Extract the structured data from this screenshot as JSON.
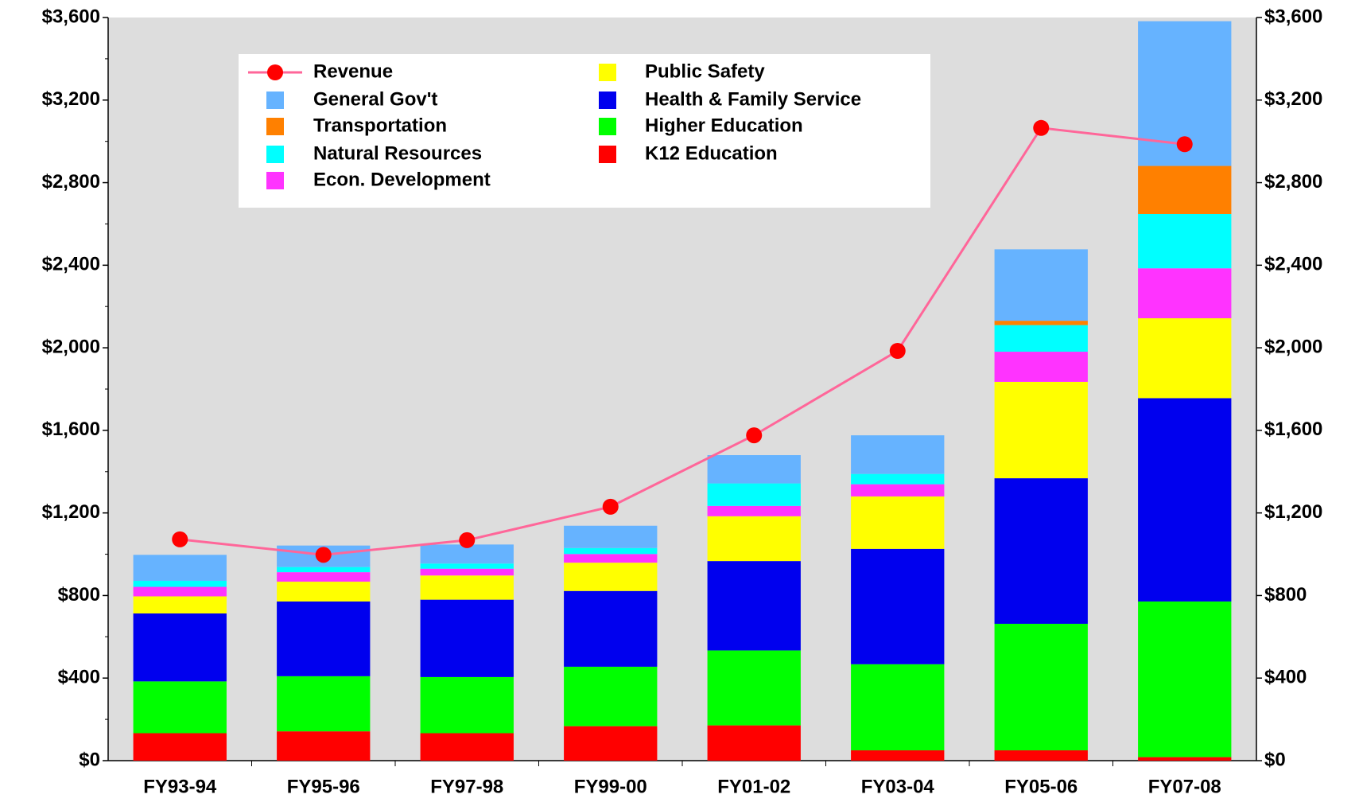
{
  "chart_data": {
    "type": "bar",
    "categories": [
      "FY93-94",
      "FY95-96",
      "FY97-98",
      "FY99-00",
      "FY01-02",
      "FY03-04",
      "FY05-06",
      "FY07-08"
    ],
    "series": [
      {
        "name": "Revenue",
        "color": "#ff6699",
        "type": "line",
        "axis": "y2",
        "values": [
          1072,
          997,
          1068,
          1230,
          1576,
          1985,
          3065,
          2986
        ]
      },
      {
        "name": "General Gov't",
        "color": "#66b3ff",
        "values": [
          126,
          104,
          92,
          108,
          137,
          187,
          346,
          701
        ]
      },
      {
        "name": "Transportation",
        "color": "#ff8000",
        "values": [
          0,
          0,
          0,
          0,
          0,
          0,
          21,
          233
        ]
      },
      {
        "name": "Natural Resources",
        "color": "#00ffff",
        "values": [
          29,
          25,
          25,
          29,
          109,
          50,
          129,
          263
        ]
      },
      {
        "name": "Econ. Development",
        "color": "#ff33ff",
        "values": [
          46,
          46,
          33,
          42,
          50,
          59,
          146,
          242
        ]
      },
      {
        "name": "Public Safety",
        "color": "#ffff00",
        "values": [
          83,
          96,
          117,
          137,
          217,
          254,
          467,
          387
        ]
      },
      {
        "name": "Health & Family Service",
        "color": "#0000ee",
        "values": [
          329,
          362,
          375,
          367,
          433,
          559,
          705,
          985
        ]
      },
      {
        "name": "Higher Education",
        "color": "#00ff00",
        "values": [
          251,
          267,
          272,
          288,
          363,
          417,
          613,
          754
        ]
      },
      {
        "name": "K12 Education",
        "color": "#ff0000",
        "values": [
          133,
          142,
          133,
          167,
          171,
          50,
          50,
          17
        ]
      }
    ],
    "ylim": [
      0,
      3600
    ],
    "yticks": [
      {
        "value": 0,
        "label": "$0"
      },
      {
        "value": 400,
        "label": "$400"
      },
      {
        "value": 800,
        "label": "$800"
      },
      {
        "value": 1200,
        "label": "$1,200"
      },
      {
        "value": 1600,
        "label": "$1,600"
      },
      {
        "value": 2000,
        "label": "$2,000"
      },
      {
        "value": 2400,
        "label": "$2,400"
      },
      {
        "value": 2800,
        "label": "$2,800"
      },
      {
        "value": 3200,
        "label": "$3,200"
      },
      {
        "value": 3600,
        "label": "$3,600"
      }
    ],
    "y2lim": [
      0,
      3600
    ],
    "y2ticks": [
      {
        "value": 0,
        "label": "$0"
      },
      {
        "value": 400,
        "label": "$400"
      },
      {
        "value": 800,
        "label": "$800"
      },
      {
        "value": 1200,
        "label": "$1,200"
      },
      {
        "value": 1600,
        "label": "$1,600"
      },
      {
        "value": 2000,
        "label": "$2,000"
      },
      {
        "value": 2400,
        "label": "$2,400"
      },
      {
        "value": 2800,
        "label": "$2,800"
      },
      {
        "value": 3200,
        "label": "$3,200"
      },
      {
        "value": 3600,
        "label": "$3,600"
      }
    ],
    "stacked": true,
    "plot_background": "#dddddd"
  }
}
